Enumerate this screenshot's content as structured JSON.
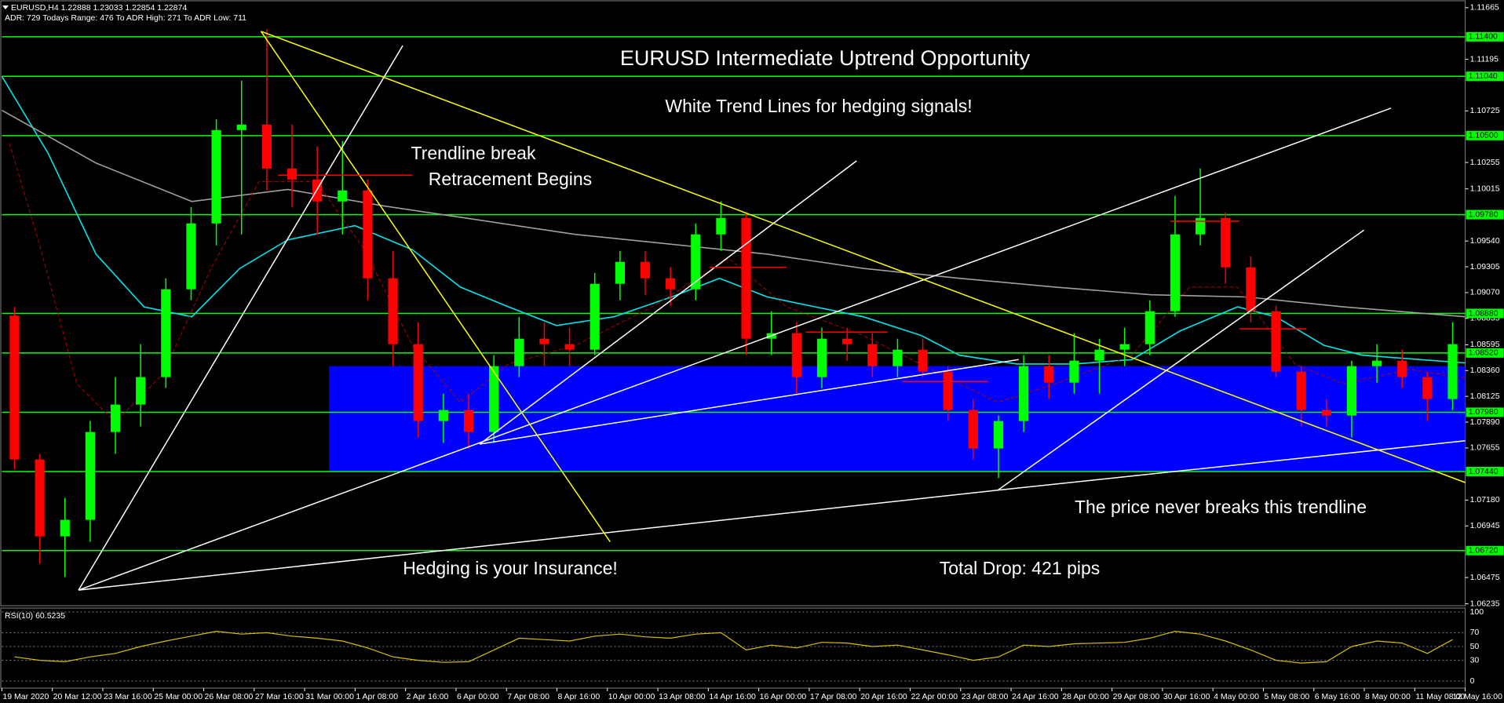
{
  "chart_data": {
    "type": "candlestick",
    "title": "EURUSD,H4  1.22888 1.23033 1.22854 1.22874",
    "subtitle": "ADR: 729  Todays Range: 476  To ADR High: 271  To ADR Low: 711",
    "xlim": [
      0,
      58
    ],
    "ylim": [
      1.06218,
      1.11735
    ],
    "xticks": [
      {
        "value": 0,
        "label": "19 Mar 2020"
      },
      {
        "value": 2,
        "label": "20 Mar 12:00"
      },
      {
        "value": 4,
        "label": "23 Mar 16:00"
      },
      {
        "value": 6,
        "label": "25 Mar 00:00"
      },
      {
        "value": 8,
        "label": "26 Mar 08:00"
      },
      {
        "value": 10,
        "label": "27 Mar 16:00"
      },
      {
        "value": 12,
        "label": "31 Mar 00:00"
      },
      {
        "value": 14,
        "label": "1 Apr 08:00"
      },
      {
        "value": 16,
        "label": "2 Apr 16:00"
      },
      {
        "value": 18,
        "label": "6 Apr 00:00"
      },
      {
        "value": 20,
        "label": "7 Apr 08:00"
      },
      {
        "value": 22,
        "label": "8 Apr 16:00"
      },
      {
        "value": 24,
        "label": "10 Apr 00:00"
      },
      {
        "value": 26,
        "label": "13 Apr 08:00"
      },
      {
        "value": 28,
        "label": "14 Apr 16:00"
      },
      {
        "value": 30,
        "label": "16 Apr 00:00"
      },
      {
        "value": 32,
        "label": "17 Apr 08:00"
      },
      {
        "value": 34,
        "label": "20 Apr 16:00"
      },
      {
        "value": 36,
        "label": "22 Apr 00:00"
      },
      {
        "value": 38,
        "label": "23 Apr 08:00"
      },
      {
        "value": 40,
        "label": "24 Apr 16:00"
      },
      {
        "value": 42,
        "label": "28 Apr 00:00"
      },
      {
        "value": 44,
        "label": "29 Apr 08:00"
      },
      {
        "value": 46,
        "label": "30 Apr 16:00"
      },
      {
        "value": 48,
        "label": "4 May 00:00"
      },
      {
        "value": 50,
        "label": "5 May 08:00"
      },
      {
        "value": 52,
        "label": "6 May 16:00"
      },
      {
        "value": 54,
        "label": "8 May 00:00"
      },
      {
        "value": 56,
        "label": "11 May 08:00"
      },
      {
        "value": 58,
        "label": "12 May 16:00"
      }
    ],
    "yticks": [
      1.11665,
      1.11195,
      1.10725,
      1.10255,
      1.10015,
      {
        "value": 1.0954,
        "label": "1.09540"
      },
      1.09305,
      {
        "value": 1.0907,
        "label": "1.09070"
      },
      1.08835,
      1.08595,
      {
        "value": 1.0836,
        "label": "1.08360"
      },
      1.08125,
      {
        "value": 1.0789,
        "label": "1.07890"
      },
      1.07655,
      {
        "value": 1.0718,
        "label": "1.07180"
      },
      1.06945,
      1.06475,
      1.06235
    ],
    "levels": [
      {
        "value": 1.114,
        "label": "1.11400"
      },
      {
        "value": 1.1104,
        "label": "1.11040"
      },
      {
        "value": 1.105,
        "label": "1.10500"
      },
      {
        "value": 1.0978,
        "label": "1.09780"
      },
      {
        "value": 1.0888,
        "label": "1.08880"
      },
      {
        "value": 1.0852,
        "label": "1.08520"
      },
      {
        "value": 1.0798,
        "label": "1.07980"
      },
      {
        "value": 1.0744,
        "label": "1.07440"
      },
      {
        "value": 1.0672,
        "label": "1.06720"
      }
    ],
    "level_color": "#00ff00",
    "zone": {
      "x": [
        12.97,
        58
      ],
      "y": [
        1.0744,
        1.084
      ],
      "color": "#0000ff"
    },
    "candles": {
      "up_color": "#00ff00",
      "down_color": "#ff0000",
      "open": [
        1.0886,
        1.0755,
        1.0685,
        1.07,
        1.078,
        1.0805,
        1.083,
        1.091,
        1.097,
        1.1055,
        1.106,
        1.102,
        1.101,
        1.099,
        1.1,
        1.092,
        1.086,
        1.079,
        1.08,
        1.078,
        1.084,
        1.0865,
        1.086,
        1.0855,
        1.0915,
        1.0935,
        1.092,
        1.091,
        1.096,
        1.0975,
        1.0865,
        1.087,
        1.083,
        1.0865,
        1.086,
        1.084,
        1.0855,
        1.0835,
        1.08,
        1.0765,
        1.079,
        1.084,
        1.0825,
        1.0845,
        1.0855,
        1.086,
        1.089,
        1.096,
        1.0975,
        1.093,
        1.089,
        1.0835,
        1.08,
        1.0795,
        1.084,
        1.0845,
        1.083,
        1.081
      ],
      "high": [
        1.0894,
        1.076,
        1.072,
        1.079,
        1.083,
        1.086,
        1.092,
        1.0985,
        1.1065,
        1.11,
        1.1147,
        1.106,
        1.104,
        1.1045,
        1.101,
        1.0945,
        1.088,
        1.0815,
        1.0815,
        1.085,
        1.0885,
        1.088,
        1.0875,
        1.0925,
        1.0945,
        1.0945,
        1.093,
        1.097,
        1.099,
        1.098,
        1.089,
        1.088,
        1.0875,
        1.0875,
        1.087,
        1.0865,
        1.0865,
        1.084,
        1.081,
        1.0795,
        1.085,
        1.085,
        1.087,
        1.0865,
        1.0875,
        1.09,
        1.0995,
        1.102,
        1.098,
        1.094,
        1.0895,
        1.084,
        1.081,
        1.0845,
        1.086,
        1.0855,
        1.0835,
        1.088
      ],
      "low": [
        1.0746,
        1.066,
        1.0648,
        1.068,
        1.076,
        1.0785,
        1.082,
        1.09,
        1.095,
        1.096,
        1.1,
        1.0985,
        1.096,
        1.096,
        1.09,
        1.084,
        1.0775,
        1.077,
        1.0765,
        1.077,
        1.083,
        1.084,
        1.084,
        1.085,
        1.09,
        1.0905,
        1.0895,
        1.09,
        1.0945,
        1.085,
        1.085,
        1.0815,
        1.082,
        1.0845,
        1.083,
        1.083,
        1.083,
        1.079,
        1.0755,
        1.0738,
        1.078,
        1.081,
        1.0815,
        1.0815,
        1.084,
        1.085,
        1.0885,
        1.095,
        1.0915,
        1.088,
        1.083,
        1.0785,
        1.0785,
        1.0775,
        1.0825,
        1.082,
        1.079,
        1.08
      ],
      "close": [
        1.0755,
        1.0685,
        1.07,
        1.078,
        1.0805,
        1.083,
        1.091,
        1.097,
        1.1055,
        1.106,
        1.102,
        1.101,
        1.099,
        1.1,
        1.092,
        1.086,
        1.079,
        1.08,
        1.078,
        1.084,
        1.0865,
        1.086,
        1.0855,
        1.0915,
        1.0935,
        1.092,
        1.091,
        1.096,
        1.0975,
        1.0865,
        1.087,
        1.083,
        1.0865,
        1.086,
        1.084,
        1.0855,
        1.0835,
        1.08,
        1.0765,
        1.079,
        1.084,
        1.0825,
        1.0845,
        1.0855,
        1.086,
        1.089,
        1.096,
        1.0975,
        1.093,
        1.089,
        1.0835,
        1.08,
        1.0795,
        1.084,
        1.0845,
        1.083,
        1.081,
        1.086
      ]
    },
    "series": [
      {
        "color": "#00e5ee",
        "x": [
          0,
          1.83,
          3.73,
          5.63,
          7.53,
          9.43,
          11.33,
          13.99,
          16.27,
          18.17,
          20.08,
          21.98,
          24.26,
          26.54,
          28.44,
          30.34,
          32.24,
          34.14,
          36.43,
          37.95,
          40.23,
          42.51,
          44.79,
          46.69,
          48.97,
          50.49,
          52.4,
          53.92,
          56.2,
          58
        ],
        "values": [
          1.1104,
          1.1034,
          1.0942,
          1.0894,
          1.0885,
          1.0929,
          1.0955,
          1.0968,
          1.0946,
          1.0912,
          1.0894,
          1.0877,
          1.0885,
          1.0903,
          1.092,
          1.0903,
          1.0894,
          1.0885,
          1.0868,
          1.085,
          1.0842,
          1.0842,
          1.0846,
          1.0872,
          1.0894,
          1.0885,
          1.0859,
          1.085,
          1.0846,
          1.0843
        ]
      },
      {
        "color": "#a0a0a0",
        "x": [
          0,
          3.73,
          7.53,
          11.33,
          15.13,
          18.94,
          22.74,
          26.54,
          30.34,
          34.14,
          37.95,
          41.75,
          45.55,
          49.35,
          53.16,
          58
        ],
        "values": [
          1.1073,
          1.1025,
          1.099,
          1.1001,
          1.0986,
          1.0973,
          1.096,
          1.0951,
          1.0942,
          1.0929,
          1.092,
          1.0912,
          1.0905,
          1.0903,
          1.0894,
          1.0885
        ]
      },
      {
        "color": "#b00000",
        "dash": true,
        "x": [
          0.3,
          1.44,
          2.97,
          4.49,
          6.39,
          8.29,
          10.19,
          12.47,
          14.37,
          16.27,
          18.17,
          20.08,
          22.74,
          25.78,
          28.82,
          31.1,
          34.14,
          37.19,
          39.47,
          41.75,
          44.79,
          47.07,
          48.97,
          51.25,
          53.16,
          55.82,
          58
        ],
        "values": [
          1.1043,
          1.0955,
          1.0824,
          1.0789,
          1.0833,
          1.0929,
          1.1008,
          1.1008,
          1.0946,
          1.0859,
          1.0807,
          1.0842,
          1.0859,
          1.0894,
          1.0938,
          1.0894,
          1.0868,
          1.0833,
          1.0807,
          1.0824,
          1.085,
          1.0912,
          1.0912,
          1.0842,
          1.0824,
          1.0837,
          1.0829
        ]
      }
    ],
    "trend_lines": [
      {
        "color": "#ffffff",
        "x": [
          3.04,
          15.89
        ],
        "y": [
          1.0636,
          1.1132
        ]
      },
      {
        "color": "#ffffff",
        "x": [
          3.04,
          39.47,
          58
        ],
        "y": [
          1.0636,
          1.0727,
          1.0772
        ]
      },
      {
        "color": "#ffffff",
        "x": [
          3.04,
          55.06
        ],
        "y": [
          1.0636,
          1.1075
        ]
      },
      {
        "color": "#ffffff",
        "x": [
          18.94,
          33.88
        ],
        "y": [
          1.0769,
          1.1027
        ]
      },
      {
        "color": "#ffffff",
        "x": [
          18.94,
          40.3
        ],
        "y": [
          1.0769,
          1.0846
        ]
      },
      {
        "color": "#ffffff",
        "x": [
          39.47,
          53.99
        ],
        "y": [
          1.0727,
          1.0964
        ]
      },
      {
        "color": "#ffff00",
        "x": [
          10.27,
          58
        ],
        "y": [
          1.1145,
          1.0734
        ]
      },
      {
        "color": "#ffff00",
        "x": [
          10.27,
          24.11
        ],
        "y": [
          1.1145,
          1.068
        ]
      },
      {
        "color": "#ff0000",
        "x": [
          10.95,
          16.27
        ],
        "y": [
          1.1014,
          1.1014
        ]
      },
      {
        "color": "#ff0000",
        "x": [
          28.06,
          31.1
        ],
        "y": [
          1.093,
          1.093
        ]
      },
      {
        "color": "#ff0000",
        "x": [
          31.86,
          35.1
        ],
        "y": [
          1.0871,
          1.0871
        ]
      },
      {
        "color": "#ff0000",
        "x": [
          35.67,
          39.09
        ],
        "y": [
          1.0826,
          1.0826
        ]
      },
      {
        "color": "#ff0000",
        "x": [
          46.31,
          49.05
        ],
        "y": [
          1.0972,
          1.0972
        ]
      },
      {
        "color": "#ff0000",
        "x": [
          49.05,
          51.71
        ],
        "y": [
          1.0874,
          1.0874
        ]
      }
    ],
    "annotations": [
      "EURUSD Intermediate Uptrend Opportunity",
      "White Trend Lines for hedging signals!",
      "Trendline break",
      "Retracement Begins",
      "Hedging is your Insurance!",
      "Total Drop: 421 pips",
      "The price never breaks this trendline"
    ],
    "rsi": {
      "label": "RSI(10) 60.5235",
      "color": "#d4c000",
      "ylim": [
        0,
        100
      ],
      "yticks": [
        100,
        70,
        50,
        30,
        0
      ],
      "values": [
        35,
        30,
        28,
        35,
        40,
        50,
        58,
        65,
        72,
        68,
        70,
        65,
        62,
        58,
        48,
        35,
        30,
        27,
        28,
        45,
        62,
        60,
        58,
        65,
        68,
        64,
        62,
        68,
        70,
        45,
        52,
        48,
        56,
        55,
        50,
        52,
        45,
        38,
        30,
        35,
        52,
        50,
        54,
        55,
        56,
        62,
        72,
        68,
        58,
        45,
        30,
        26,
        28,
        50,
        58,
        55,
        40,
        60
      ]
    }
  }
}
